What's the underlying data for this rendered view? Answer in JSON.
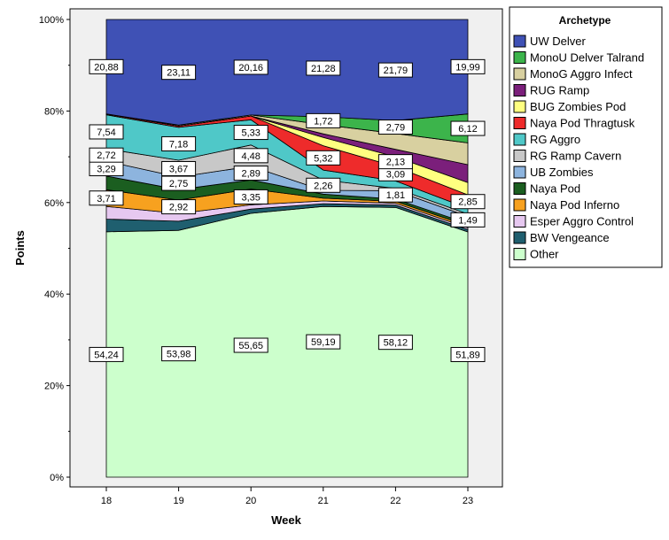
{
  "chart_data": {
    "type": "area",
    "stacked_percent": true,
    "x": [
      "18",
      "19",
      "20",
      "21",
      "22",
      "23"
    ],
    "xlabel": "Week",
    "ylabel": "Points",
    "ylim": [
      0,
      100
    ],
    "y_ticks": [
      "0%",
      "20%",
      "40%",
      "60%",
      "80%",
      "100%"
    ],
    "legend_title": "Archetype",
    "legend_position": "right",
    "series": [
      {
        "name": "Other",
        "color": "#ccffcc",
        "values": [
          54.24,
          53.98,
          55.65,
          59.19,
          58.12,
          51.89
        ],
        "labels": [
          "54,24",
          "53,98",
          "55,65",
          "59,19",
          "58,12",
          "51,89"
        ]
      },
      {
        "name": "BW Vengeance",
        "color": "#1f5f6f",
        "values": [
          2.8,
          2.0,
          0.9,
          0.6,
          0.5,
          0.5
        ],
        "labels": [
          "",
          "",
          "",
          "",
          "",
          ""
        ]
      },
      {
        "name": "Esper Aggro Control",
        "color": "#e6c8f0",
        "values": [
          2.8,
          1.7,
          0.9,
          0.6,
          0.4,
          0.4
        ],
        "labels": [
          "",
          "",
          "",
          "",
          "",
          ""
        ]
      },
      {
        "name": "Naya Pod Inferno",
        "color": "#f7a11f",
        "values": [
          3.71,
          2.92,
          3.35,
          0.6,
          0.4,
          0.4
        ],
        "labels": [
          "3,71",
          "2,92",
          "3,35",
          "",
          "",
          ""
        ]
      },
      {
        "name": "Naya Pod",
        "color": "#1b5e20",
        "values": [
          3.0,
          2.3,
          1.9,
          0.9,
          0.5,
          0.5
        ],
        "labels": [
          "",
          "",
          "",
          "",
          "",
          ""
        ]
      },
      {
        "name": "UB Zombies",
        "color": "#8db4de",
        "values": [
          3.29,
          2.75,
          2.89,
          0.8,
          1.81,
          1.49
        ],
        "labels": [
          "3,29",
          "2,75",
          "2,89",
          "",
          "1,81",
          "1,49"
        ]
      },
      {
        "name": "RG Ramp Cavern",
        "color": "#c8c8c8",
        "values": [
          2.72,
          3.67,
          4.48,
          2.26,
          0.5,
          0.5
        ],
        "labels": [
          "2,72",
          "3,67",
          "4,48",
          "2,26",
          "",
          ""
        ]
      },
      {
        "name": "RG Aggro",
        "color": "#4fc8c8",
        "values": [
          7.54,
          7.18,
          5.33,
          2.2,
          1.6,
          1.2
        ],
        "labels": [
          "7,54",
          "7,18",
          "5,33",
          "",
          "",
          ""
        ]
      },
      {
        "name": "Naya Pod Thragtusk",
        "color": "#ee2b2b",
        "values": [
          0.2,
          0.3,
          0.8,
          5.32,
          3.09,
          2.85
        ],
        "labels": [
          "",
          "",
          "",
          "5,32",
          "3,09",
          "2,85"
        ]
      },
      {
        "name": "BUG Zombies Pod",
        "color": "#ffff80",
        "values": [
          0.0,
          0.0,
          0.0,
          1.8,
          2.13,
          2.6
        ],
        "labels": [
          "",
          "",
          "",
          "",
          "2,13",
          ""
        ]
      },
      {
        "name": "RUG Ramp",
        "color": "#7b1f7b",
        "values": [
          0.0,
          0.0,
          0.0,
          0.8,
          1.6,
          3.8
        ],
        "labels": [
          "",
          "",
          "",
          "",
          "",
          ""
        ]
      },
      {
        "name": "MonoG Aggro Infect",
        "color": "#d8d0a0",
        "values": [
          0.0,
          0.2,
          0.2,
          2.0,
          3.4,
          4.6
        ],
        "labels": [
          "",
          "",
          "",
          "",
          "",
          ""
        ]
      },
      {
        "name": "MonoU Delver Talrand",
        "color": "#3cb44b",
        "values": [
          0.0,
          0.0,
          0.0,
          1.72,
          2.79,
          6.12
        ],
        "labels": [
          "",
          "",
          "",
          "1,72",
          "2,79",
          "6,12"
        ]
      },
      {
        "name": "UW Delver",
        "color": "#3f51b5",
        "values": [
          20.88,
          23.11,
          20.16,
          21.28,
          21.79,
          19.99
        ],
        "labels": [
          "20,88",
          "23,11",
          "20,16",
          "21,28",
          "21,79",
          "19,99"
        ]
      }
    ],
    "legend_order": [
      "UW Delver",
      "MonoU Delver Talrand",
      "MonoG Aggro Infect",
      "RUG Ramp",
      "BUG Zombies Pod",
      "Naya Pod Thragtusk",
      "RG Aggro",
      "RG Ramp Cavern",
      "UB Zombies",
      "Naya Pod",
      "Naya Pod Inferno",
      "Esper Aggro Control",
      "BW Vengeance",
      "Other"
    ]
  }
}
